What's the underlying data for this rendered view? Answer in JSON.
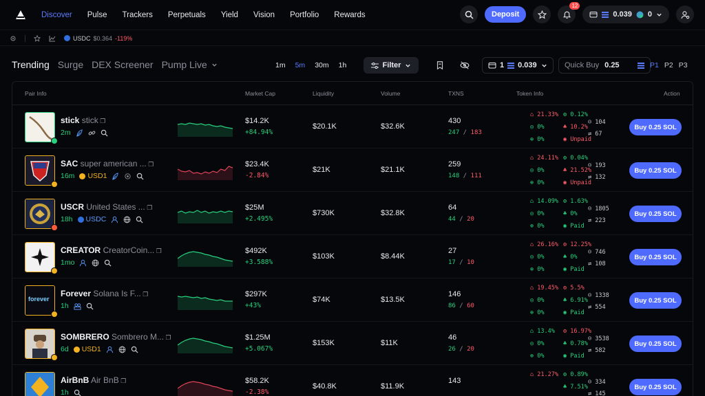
{
  "nav": {
    "items": [
      "Discover",
      "Pulse",
      "Trackers",
      "Perpetuals",
      "Yield",
      "Vision",
      "Portfolio",
      "Rewards"
    ],
    "active": 0
  },
  "header": {
    "deposit_label": "Deposit",
    "notif_count": "12",
    "wallet_sol": "0.039",
    "wallet_other": "0"
  },
  "subbar": {
    "token": "USDC",
    "price": "$0.364",
    "change": "-119%"
  },
  "tabs": [
    "Trending",
    "Surge",
    "DEX Screener",
    "Pump Live"
  ],
  "timeframes": [
    "1m",
    "5m",
    "30m",
    "1h"
  ],
  "active_timeframe": 1,
  "toolbar": {
    "filter_label": "Filter",
    "wallet_count": "1",
    "wallet_balance": "0.039",
    "quickbuy_label": "Quick Buy",
    "quickbuy_value": "0.25",
    "presets": [
      "P1",
      "P2",
      "P3"
    ]
  },
  "columns": [
    "Pair Info",
    "Market Cap",
    "Liquidity",
    "Volume",
    "TXNS",
    "Token Info",
    "Action"
  ],
  "rows": [
    {
      "symbol": "stick",
      "name": "stick",
      "age": "2m",
      "quote": "",
      "mc": "$14.2K",
      "mc_change": "+84.94%",
      "mc_dir": "up",
      "liq": "$20.1K",
      "vol": "$32.6K",
      "txns": "430",
      "buys": "247",
      "sells": "183",
      "t1": "21.33%",
      "t1c": "red",
      "t2": "0.12%",
      "t2c": "green",
      "t3": "0%",
      "t4": "10.2%",
      "t4c": "red",
      "t5": "0%",
      "t6": "Unpaid",
      "t6c": "red",
      "holders": "104",
      "pro": "67",
      "trend": "flat-down",
      "color": "green",
      "border": "#27d17f"
    },
    {
      "symbol": "SAC",
      "name": "super american ...",
      "age": "16m",
      "quote": "USD1",
      "mc": "$23.4K",
      "mc_change": "-2.84%",
      "mc_dir": "down",
      "liq": "$21K",
      "vol": "$21.1K",
      "txns": "259",
      "buys": "148",
      "sells": "111",
      "t1": "24.11%",
      "t1c": "red",
      "t2": "0.04%",
      "t2c": "green",
      "t3": "0%",
      "t4": "21.52%",
      "t4c": "red",
      "t5": "0%",
      "t6": "Unpaid",
      "t6c": "red",
      "holders": "193",
      "pro": "132",
      "trend": "wave",
      "color": "red",
      "border": "#f3b21f"
    },
    {
      "symbol": "USCR",
      "name": "United States ...",
      "age": "18h",
      "quote": "USDC",
      "mc": "$25M",
      "mc_change": "+2.495%",
      "mc_dir": "up",
      "liq": "$730K",
      "vol": "$32.8K",
      "txns": "64",
      "buys": "44",
      "sells": "20",
      "t1": "14.09%",
      "t1c": "green",
      "t2": "1.63%",
      "t2c": "green",
      "t3": "0%",
      "t4": "0%",
      "t4c": "green",
      "t5": "0%",
      "t6": "Paid",
      "t6c": "green",
      "holders": "1805",
      "pro": "223",
      "trend": "noisy",
      "color": "green",
      "border": "#f3b21f"
    },
    {
      "symbol": "CREATOR",
      "name": "CreatorCoin...",
      "age": "1mo",
      "quote": "",
      "mc": "$492K",
      "mc_change": "+3.588%",
      "mc_dir": "up",
      "liq": "$103K",
      "vol": "$8.44K",
      "txns": "27",
      "buys": "17",
      "sells": "10",
      "t1": "26.16%",
      "t1c": "red",
      "t2": "12.25%",
      "t2c": "red",
      "t3": "0%",
      "t4": "0%",
      "t4c": "green",
      "t5": "0%",
      "t6": "Paid",
      "t6c": "green",
      "holders": "746",
      "pro": "108",
      "trend": "hump",
      "color": "green",
      "border": "#f3b21f"
    },
    {
      "symbol": "Forever",
      "name": "Solana Is F...",
      "age": "1h",
      "quote": "",
      "mc": "$297K",
      "mc_change": "+43%",
      "mc_dir": "up",
      "liq": "$74K",
      "vol": "$13.5K",
      "txns": "146",
      "buys": "86",
      "sells": "60",
      "t1": "19.45%",
      "t1c": "red",
      "t2": "5.5%",
      "t2c": "red",
      "t3": "0%",
      "t4": "6.91%",
      "t4c": "green",
      "t5": "0%",
      "t6": "Paid",
      "t6c": "green",
      "holders": "1338",
      "pro": "554",
      "trend": "step-down",
      "color": "green",
      "border": "#f3b21f"
    },
    {
      "symbol": "SOMBRERO",
      "name": "Sombrero M...",
      "age": "6d",
      "quote": "USD1",
      "mc": "$1.25M",
      "mc_change": "+5.067%",
      "mc_dir": "up",
      "liq": "$153K",
      "vol": "$11K",
      "txns": "46",
      "buys": "26",
      "sells": "20",
      "t1": "13.4%",
      "t1c": "green",
      "t2": "16.97%",
      "t2c": "red",
      "t3": "0%",
      "t4": "0.78%",
      "t4c": "green",
      "t5": "0%",
      "t6": "Paid",
      "t6c": "green",
      "holders": "3538",
      "pro": "582",
      "trend": "hump",
      "color": "green",
      "border": "#f3b21f"
    },
    {
      "symbol": "AirBnB",
      "name": "Air BnB",
      "age": "1h",
      "quote": "",
      "mc": "$58.2K",
      "mc_change": "-2.38%",
      "mc_dir": "down",
      "liq": "$40.8K",
      "vol": "$11.9K",
      "txns": "143",
      "buys": "",
      "sells": "",
      "t1": "21.27%",
      "t1c": "red",
      "t2": "0.89%",
      "t2c": "green",
      "t3": "",
      "t4": "7.51%",
      "t4c": "green",
      "t5": "",
      "t6": "",
      "t6c": "green",
      "holders": "334",
      "pro": "145",
      "trend": "hump",
      "color": "red",
      "border": "#f3b21f"
    }
  ],
  "buy_label": "Buy 0.25 SOL",
  "forever_logo_text": "forever"
}
